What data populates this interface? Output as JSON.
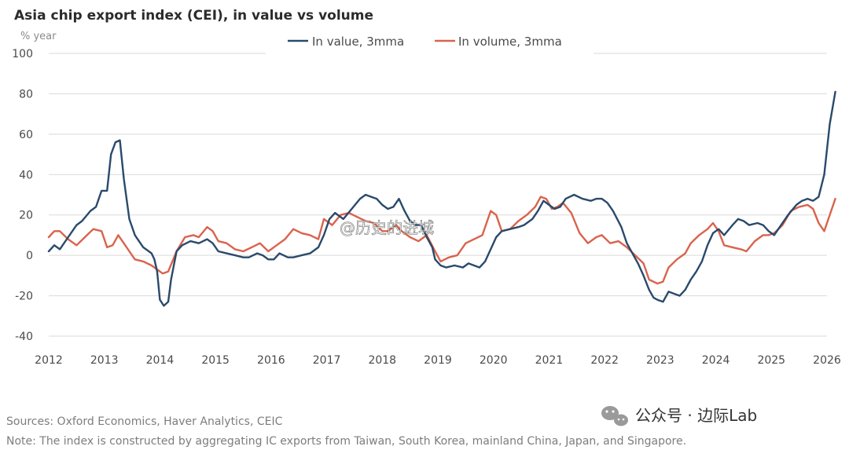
{
  "chart_data": {
    "type": "line",
    "title": "Asia chip export index (CEI), in value vs volume",
    "ylabel": "% year",
    "xlabel": "",
    "ylim": [
      -40,
      100
    ],
    "xlim": [
      2012,
      2026
    ],
    "yticks": [
      100,
      80,
      60,
      40,
      20,
      0,
      -20,
      -40
    ],
    "xticks": [
      2012,
      2013,
      2014,
      2015,
      2016,
      2017,
      2018,
      2019,
      2020,
      2021,
      2022,
      2023,
      2024,
      2025,
      2026
    ],
    "grid": true,
    "legend_position": "top-center",
    "colors": {
      "value": "#2a4a6b",
      "volume": "#d9634d"
    },
    "series": [
      {
        "name": "In value, 3mma",
        "points": [
          [
            2012.0,
            2
          ],
          [
            2012.1,
            5
          ],
          [
            2012.2,
            3
          ],
          [
            2012.35,
            9
          ],
          [
            2012.5,
            15
          ],
          [
            2012.6,
            17
          ],
          [
            2012.75,
            22
          ],
          [
            2012.85,
            24
          ],
          [
            2012.95,
            32
          ],
          [
            2013.05,
            32
          ],
          [
            2013.12,
            50
          ],
          [
            2013.2,
            56
          ],
          [
            2013.28,
            57
          ],
          [
            2013.35,
            38
          ],
          [
            2013.45,
            18
          ],
          [
            2013.55,
            10
          ],
          [
            2013.7,
            4
          ],
          [
            2013.8,
            2
          ],
          [
            2013.85,
            1
          ],
          [
            2013.9,
            -2
          ],
          [
            2013.95,
            -8
          ],
          [
            2014.0,
            -22
          ],
          [
            2014.07,
            -25
          ],
          [
            2014.15,
            -23
          ],
          [
            2014.2,
            -12
          ],
          [
            2014.3,
            2
          ],
          [
            2014.4,
            5
          ],
          [
            2014.55,
            7
          ],
          [
            2014.7,
            6
          ],
          [
            2014.85,
            8
          ],
          [
            2014.95,
            6
          ],
          [
            2015.05,
            2
          ],
          [
            2015.2,
            1
          ],
          [
            2015.35,
            0
          ],
          [
            2015.5,
            -1
          ],
          [
            2015.6,
            -1
          ],
          [
            2015.75,
            1
          ],
          [
            2015.85,
            0
          ],
          [
            2015.95,
            -2
          ],
          [
            2016.05,
            -2
          ],
          [
            2016.15,
            1
          ],
          [
            2016.3,
            -1
          ],
          [
            2016.4,
            -1
          ],
          [
            2016.55,
            0
          ],
          [
            2016.7,
            1
          ],
          [
            2016.85,
            4
          ],
          [
            2016.95,
            10
          ],
          [
            2017.05,
            18
          ],
          [
            2017.15,
            21
          ],
          [
            2017.3,
            18
          ],
          [
            2017.45,
            23
          ],
          [
            2017.6,
            28
          ],
          [
            2017.7,
            30
          ],
          [
            2017.8,
            29
          ],
          [
            2017.9,
            28
          ],
          [
            2018.0,
            25
          ],
          [
            2018.1,
            23
          ],
          [
            2018.2,
            24
          ],
          [
            2018.3,
            28
          ],
          [
            2018.4,
            22
          ],
          [
            2018.5,
            17
          ],
          [
            2018.6,
            15
          ],
          [
            2018.7,
            15
          ],
          [
            2018.8,
            9
          ],
          [
            2018.9,
            4
          ],
          [
            2018.95,
            -2
          ],
          [
            2019.05,
            -5
          ],
          [
            2019.15,
            -6
          ],
          [
            2019.3,
            -5
          ],
          [
            2019.45,
            -6
          ],
          [
            2019.55,
            -4
          ],
          [
            2019.65,
            -5
          ],
          [
            2019.75,
            -6
          ],
          [
            2019.85,
            -3
          ],
          [
            2019.95,
            3
          ],
          [
            2020.05,
            9
          ],
          [
            2020.15,
            12
          ],
          [
            2020.3,
            13
          ],
          [
            2020.45,
            14
          ],
          [
            2020.55,
            15
          ],
          [
            2020.7,
            18
          ],
          [
            2020.8,
            22
          ],
          [
            2020.9,
            27
          ],
          [
            2021.0,
            25
          ],
          [
            2021.1,
            23
          ],
          [
            2021.2,
            24
          ],
          [
            2021.3,
            28
          ],
          [
            2021.45,
            30
          ],
          [
            2021.6,
            28
          ],
          [
            2021.75,
            27
          ],
          [
            2021.85,
            28
          ],
          [
            2021.95,
            28
          ],
          [
            2022.05,
            26
          ],
          [
            2022.15,
            22
          ],
          [
            2022.3,
            14
          ],
          [
            2022.4,
            6
          ],
          [
            2022.5,
            1
          ],
          [
            2022.6,
            -4
          ],
          [
            2022.7,
            -10
          ],
          [
            2022.8,
            -17
          ],
          [
            2022.88,
            -21
          ],
          [
            2022.95,
            -22
          ],
          [
            2023.05,
            -23
          ],
          [
            2023.15,
            -18
          ],
          [
            2023.25,
            -19
          ],
          [
            2023.35,
            -20
          ],
          [
            2023.45,
            -17
          ],
          [
            2023.55,
            -12
          ],
          [
            2023.65,
            -8
          ],
          [
            2023.75,
            -3
          ],
          [
            2023.85,
            5
          ],
          [
            2023.95,
            11
          ],
          [
            2024.05,
            13
          ],
          [
            2024.15,
            10
          ],
          [
            2024.3,
            15
          ],
          [
            2024.4,
            18
          ],
          [
            2024.5,
            17
          ],
          [
            2024.6,
            15
          ],
          [
            2024.75,
            16
          ],
          [
            2024.85,
            15
          ],
          [
            2024.95,
            12
          ],
          [
            2025.05,
            10
          ],
          [
            2025.15,
            14
          ],
          [
            2025.3,
            20
          ],
          [
            2025.45,
            25
          ],
          [
            2025.55,
            27
          ],
          [
            2025.65,
            28
          ],
          [
            2025.75,
            27
          ],
          [
            2025.85,
            29
          ],
          [
            2025.95,
            40
          ],
          [
            2026.05,
            65
          ],
          [
            2026.15,
            81
          ]
        ]
      },
      {
        "name": "In volume, 3mma",
        "points": [
          [
            2012.0,
            9
          ],
          [
            2012.1,
            12
          ],
          [
            2012.2,
            12
          ],
          [
            2012.35,
            8
          ],
          [
            2012.5,
            5
          ],
          [
            2012.65,
            9
          ],
          [
            2012.8,
            13
          ],
          [
            2012.95,
            12
          ],
          [
            2013.05,
            4
          ],
          [
            2013.15,
            5
          ],
          [
            2013.25,
            10
          ],
          [
            2013.35,
            6
          ],
          [
            2013.45,
            2
          ],
          [
            2013.55,
            -2
          ],
          [
            2013.7,
            -3
          ],
          [
            2013.85,
            -5
          ],
          [
            2013.95,
            -7
          ],
          [
            2014.05,
            -9
          ],
          [
            2014.15,
            -8
          ],
          [
            2014.3,
            2
          ],
          [
            2014.45,
            9
          ],
          [
            2014.6,
            10
          ],
          [
            2014.7,
            9
          ],
          [
            2014.85,
            14
          ],
          [
            2014.95,
            12
          ],
          [
            2015.05,
            7
          ],
          [
            2015.2,
            6
          ],
          [
            2015.35,
            3
          ],
          [
            2015.5,
            2
          ],
          [
            2015.65,
            4
          ],
          [
            2015.8,
            6
          ],
          [
            2015.95,
            2
          ],
          [
            2016.1,
            5
          ],
          [
            2016.25,
            8
          ],
          [
            2016.4,
            13
          ],
          [
            2016.55,
            11
          ],
          [
            2016.7,
            10
          ],
          [
            2016.85,
            8
          ],
          [
            2016.95,
            18
          ],
          [
            2017.1,
            15
          ],
          [
            2017.25,
            20
          ],
          [
            2017.4,
            21
          ],
          [
            2017.55,
            19
          ],
          [
            2017.7,
            17
          ],
          [
            2017.85,
            16
          ],
          [
            2018.0,
            12
          ],
          [
            2018.1,
            12
          ],
          [
            2018.25,
            15
          ],
          [
            2018.35,
            12
          ],
          [
            2018.5,
            9
          ],
          [
            2018.65,
            7
          ],
          [
            2018.8,
            10
          ],
          [
            2018.95,
            2
          ],
          [
            2019.05,
            -3
          ],
          [
            2019.2,
            -1
          ],
          [
            2019.35,
            0
          ],
          [
            2019.5,
            6
          ],
          [
            2019.65,
            8
          ],
          [
            2019.8,
            10
          ],
          [
            2019.95,
            22
          ],
          [
            2020.05,
            20
          ],
          [
            2020.15,
            12
          ],
          [
            2020.3,
            13
          ],
          [
            2020.45,
            17
          ],
          [
            2020.6,
            20
          ],
          [
            2020.75,
            24
          ],
          [
            2020.85,
            29
          ],
          [
            2020.95,
            28
          ],
          [
            2021.05,
            23
          ],
          [
            2021.15,
            24
          ],
          [
            2021.25,
            26
          ],
          [
            2021.4,
            21
          ],
          [
            2021.55,
            11
          ],
          [
            2021.7,
            6
          ],
          [
            2021.85,
            9
          ],
          [
            2021.95,
            10
          ],
          [
            2022.1,
            6
          ],
          [
            2022.25,
            7
          ],
          [
            2022.4,
            4
          ],
          [
            2022.55,
            0
          ],
          [
            2022.7,
            -4
          ],
          [
            2022.8,
            -12
          ],
          [
            2022.95,
            -14
          ],
          [
            2023.05,
            -13
          ],
          [
            2023.15,
            -6
          ],
          [
            2023.3,
            -2
          ],
          [
            2023.45,
            1
          ],
          [
            2023.55,
            6
          ],
          [
            2023.7,
            10
          ],
          [
            2023.85,
            13
          ],
          [
            2023.95,
            16
          ],
          [
            2024.05,
            12
          ],
          [
            2024.15,
            5
          ],
          [
            2024.3,
            4
          ],
          [
            2024.45,
            3
          ],
          [
            2024.55,
            2
          ],
          [
            2024.7,
            7
          ],
          [
            2024.85,
            10
          ],
          [
            2024.95,
            10
          ],
          [
            2025.05,
            11
          ],
          [
            2025.2,
            15
          ],
          [
            2025.35,
            22
          ],
          [
            2025.5,
            24
          ],
          [
            2025.65,
            25
          ],
          [
            2025.75,
            23
          ],
          [
            2025.85,
            16
          ],
          [
            2025.95,
            12
          ],
          [
            2026.05,
            20
          ],
          [
            2026.15,
            28
          ]
        ]
      }
    ]
  },
  "sources": "Sources: Oxford Economics, Haver Analytics, CEIC",
  "note": "Note: The index is constructed by aggregating IC exports from Taiwan, South Korea, mainland China, Japan, and Singapore.",
  "watermark": "@历史的进城",
  "brand": "公众号 · 边际Lab"
}
